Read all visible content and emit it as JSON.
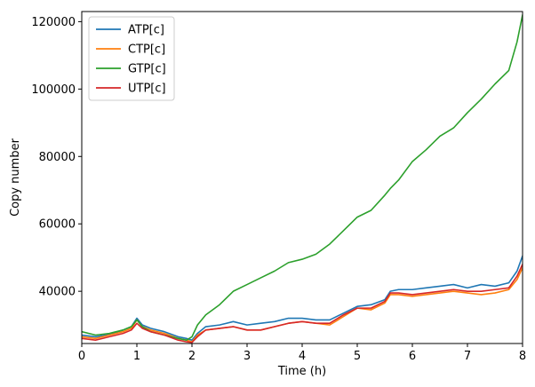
{
  "chart_data": {
    "type": "line",
    "xlabel": "Time (h)",
    "ylabel": "Copy number",
    "xlim": [
      0,
      8
    ],
    "ylim": [
      24500,
      123000
    ],
    "xticks": [
      0,
      1,
      2,
      3,
      4,
      5,
      6,
      7,
      8
    ],
    "xtick_labels": [
      "0",
      "1",
      "2",
      "3",
      "4",
      "5",
      "6",
      "7",
      "8"
    ],
    "yticks": [
      40000,
      60000,
      80000,
      100000,
      120000
    ],
    "ytick_labels": [
      "40000",
      "60000",
      "80000",
      "100000",
      "120000"
    ],
    "grid": false,
    "legend_position": "top-left",
    "series": [
      {
        "name": "ATP[c]",
        "color": "#1f77b4",
        "x": [
          0,
          0.25,
          0.5,
          0.75,
          0.9,
          1.0,
          1.1,
          1.25,
          1.5,
          1.75,
          1.9,
          2.0,
          2.1,
          2.25,
          2.5,
          2.75,
          3.0,
          3.25,
          3.5,
          3.75,
          4.0,
          4.25,
          4.5,
          4.75,
          5.0,
          5.25,
          5.5,
          5.6,
          5.75,
          6.0,
          6.25,
          6.5,
          6.75,
          7.0,
          7.25,
          7.5,
          7.75,
          7.9,
          8.0
        ],
        "y": [
          27000,
          26500,
          27200,
          28500,
          29500,
          32000,
          30000,
          29000,
          28000,
          26500,
          26000,
          25500,
          27500,
          29500,
          30000,
          31000,
          30000,
          30500,
          31000,
          32000,
          32000,
          31500,
          31500,
          33500,
          35500,
          36000,
          37500,
          40000,
          40500,
          40500,
          41000,
          41500,
          42000,
          41000,
          42000,
          41500,
          42500,
          46000,
          50500
        ]
      },
      {
        "name": "CTP[c]",
        "color": "#ff7f0e",
        "x": [
          0,
          0.25,
          0.5,
          0.75,
          0.9,
          1.0,
          1.1,
          1.25,
          1.5,
          1.75,
          1.9,
          2.0,
          2.1,
          2.25,
          2.5,
          2.75,
          3.0,
          3.25,
          3.5,
          3.75,
          4.0,
          4.25,
          4.5,
          4.75,
          5.0,
          5.25,
          5.5,
          5.6,
          5.75,
          6.0,
          6.25,
          6.5,
          6.75,
          7.0,
          7.25,
          7.5,
          7.75,
          7.9,
          8.0
        ],
        "y": [
          26500,
          26000,
          27000,
          28000,
          29000,
          31500,
          29500,
          28500,
          27500,
          26000,
          25500,
          25000,
          27000,
          28500,
          29000,
          29500,
          28500,
          28500,
          29500,
          30500,
          31000,
          30500,
          30000,
          32500,
          35000,
          34500,
          36500,
          39000,
          39000,
          38500,
          39000,
          39500,
          40000,
          39500,
          39000,
          39500,
          40500,
          43500,
          47000
        ]
      },
      {
        "name": "GTP[c]",
        "color": "#2ca02c",
        "x": [
          0,
          0.25,
          0.5,
          0.75,
          0.9,
          1.0,
          1.1,
          1.25,
          1.5,
          1.75,
          1.9,
          2.0,
          2.1,
          2.25,
          2.5,
          2.75,
          3.0,
          3.25,
          3.5,
          3.75,
          4.0,
          4.25,
          4.5,
          4.75,
          5.0,
          5.25,
          5.5,
          5.6,
          5.75,
          6.0,
          6.25,
          6.5,
          6.75,
          7.0,
          7.25,
          7.5,
          7.75,
          7.9,
          8.0
        ],
        "y": [
          28000,
          27000,
          27500,
          28500,
          29500,
          31500,
          29500,
          28000,
          27000,
          26000,
          25500,
          26500,
          30000,
          33000,
          36000,
          40000,
          42000,
          44000,
          46000,
          48500,
          49500,
          51000,
          54000,
          58000,
          62000,
          64000,
          68500,
          70500,
          73000,
          78500,
          82000,
          86000,
          88500,
          93000,
          97000,
          101500,
          105500,
          114000,
          122000
        ]
      },
      {
        "name": "UTP[c]",
        "color": "#d62728",
        "x": [
          0,
          0.25,
          0.5,
          0.75,
          0.9,
          1.0,
          1.1,
          1.25,
          1.5,
          1.75,
          1.9,
          2.0,
          2.1,
          2.25,
          2.5,
          2.75,
          3.0,
          3.25,
          3.5,
          3.75,
          4.0,
          4.25,
          4.5,
          4.75,
          5.0,
          5.25,
          5.5,
          5.6,
          5.75,
          6.0,
          6.25,
          6.5,
          6.75,
          7.0,
          7.25,
          7.5,
          7.75,
          7.9,
          8.0
        ],
        "y": [
          26000,
          25500,
          26500,
          27500,
          28500,
          30500,
          29000,
          28000,
          27000,
          25500,
          25000,
          24800,
          26500,
          28500,
          29000,
          29500,
          28500,
          28500,
          29500,
          30500,
          31000,
          30500,
          30500,
          33000,
          35000,
          35000,
          37000,
          39500,
          39500,
          39000,
          39500,
          40000,
          40500,
          40000,
          40000,
          40500,
          41000,
          44500,
          48000
        ]
      }
    ]
  }
}
